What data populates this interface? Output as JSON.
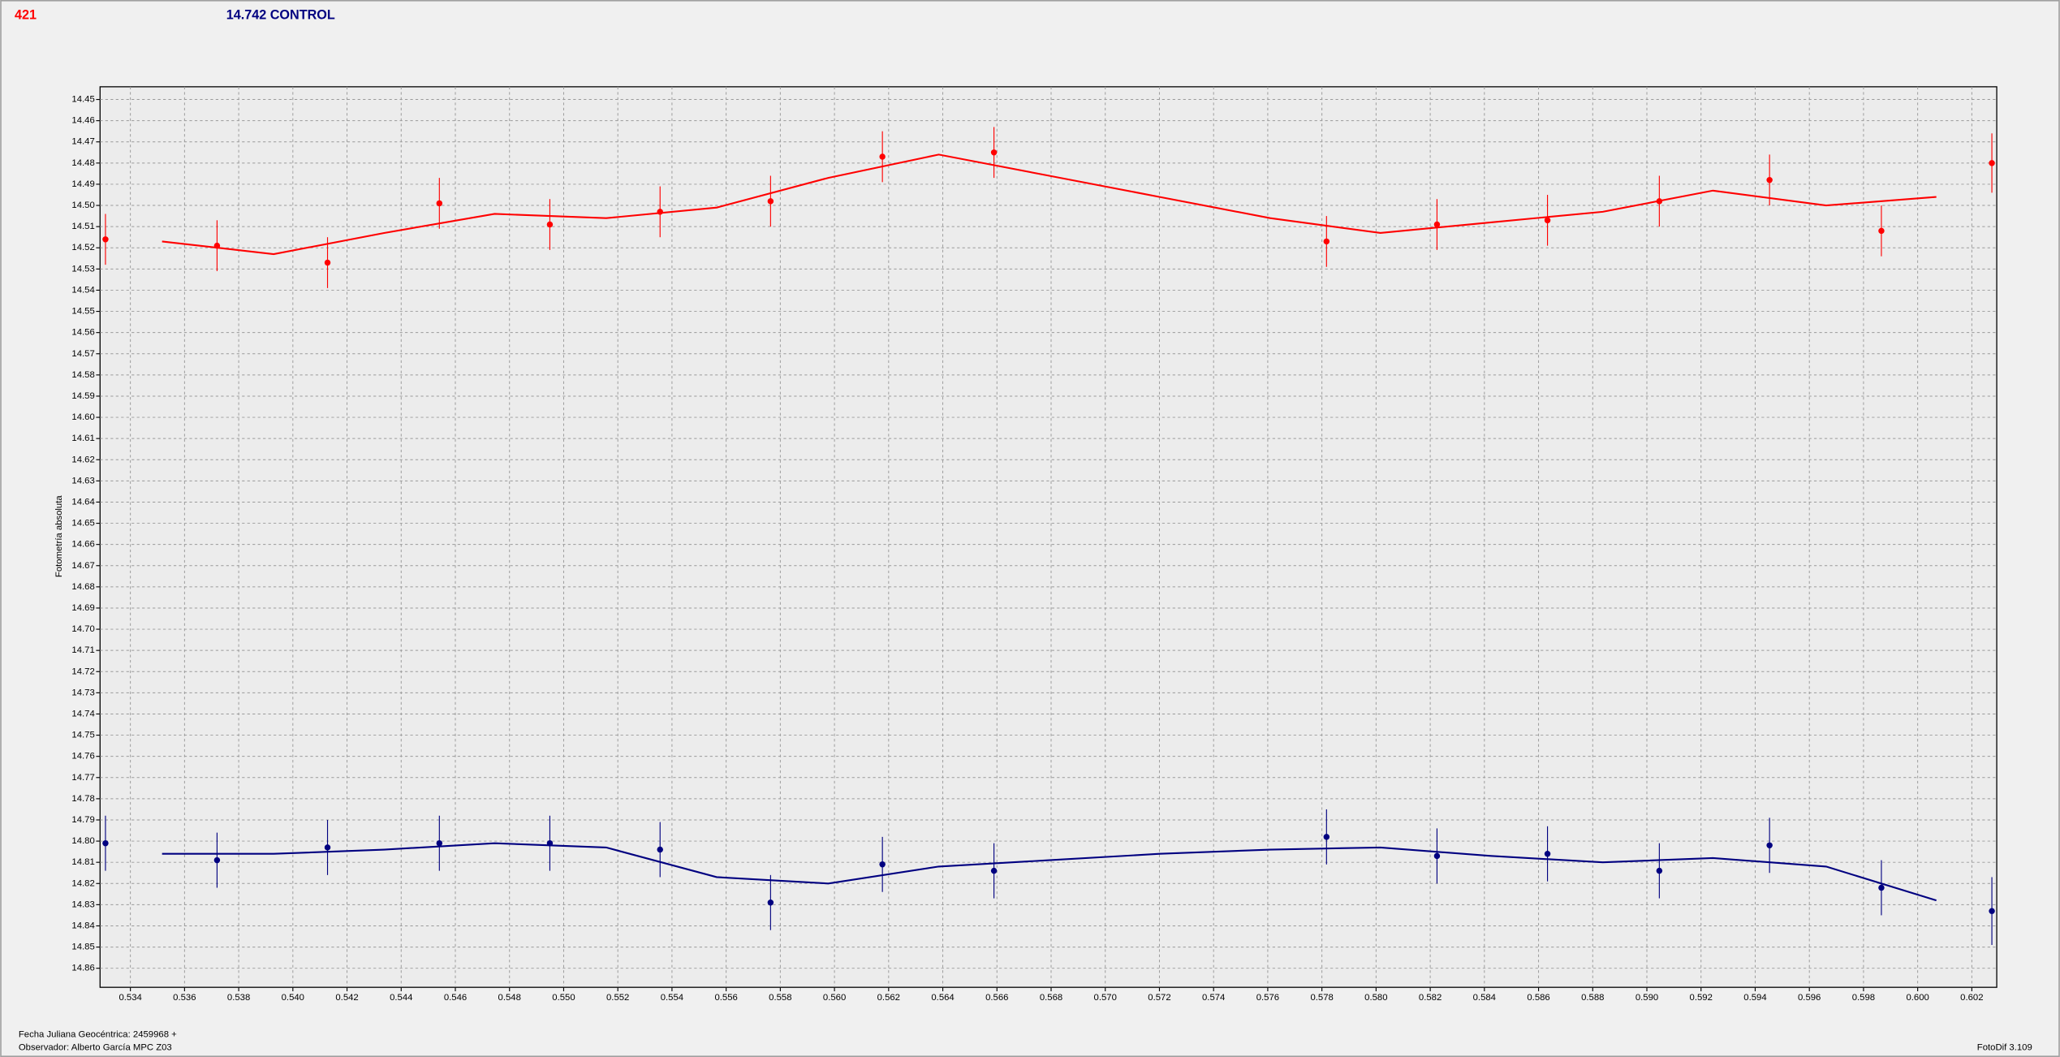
{
  "chart_data": {
    "type": "scatter",
    "object_id": "421",
    "title": "14.742 CONTROL",
    "y_label": "Fotometría absoluta",
    "footer_lines": [
      "Fecha Juliana Geocéntrica: 2459968 +",
      "Observador: Alberto García MPC Z03"
    ],
    "software": "FotoDif 3.109",
    "xlim": [
      0.53288,
      0.60292
    ],
    "xticks": [
      0.534,
      0.536,
      0.538,
      {
        "value": 0.54,
        "label": "0.540"
      },
      0.542,
      0.544,
      0.546,
      0.548,
      {
        "value": 0.55,
        "label": "0.550"
      },
      0.552,
      0.554,
      0.556,
      0.558,
      {
        "value": 0.56,
        "label": "0.560"
      },
      0.562,
      0.564,
      0.566,
      0.568,
      {
        "value": 0.57,
        "label": "0.570"
      },
      0.572,
      0.574,
      0.576,
      0.578,
      {
        "value": 0.58,
        "label": "0.580"
      },
      0.582,
      0.584,
      0.586,
      0.588,
      {
        "value": 0.59,
        "label": "0.590"
      },
      0.592,
      0.594,
      0.596,
      0.598,
      {
        "value": 0.6,
        "label": "0.600"
      },
      0.602
    ],
    "ylim": [
      14.869,
      14.444
    ],
    "yticks": [
      14.45,
      14.46,
      14.47,
      14.48,
      14.49,
      {
        "value": 14.5,
        "label": "14.50"
      },
      14.51,
      14.52,
      14.53,
      14.54,
      14.55,
      14.56,
      14.57,
      14.58,
      14.59,
      {
        "value": 14.6,
        "label": "14.60"
      },
      14.61,
      14.62,
      14.63,
      14.64,
      14.65,
      14.66,
      14.67,
      14.68,
      14.69,
      {
        "value": 14.7,
        "label": "14.70"
      },
      14.71,
      14.72,
      14.73,
      14.74,
      14.75,
      14.76,
      14.77,
      14.78,
      14.79,
      {
        "value": 14.8,
        "label": "14.80"
      },
      14.81,
      14.82,
      14.83,
      14.84,
      14.85,
      14.86
    ],
    "grid": true,
    "x": [
      0.53308,
      0.5372,
      0.54128,
      0.54541,
      0.54949,
      0.55356,
      0.55764,
      0.56177,
      0.56589,
      0.57817,
      0.58225,
      0.58633,
      0.59046,
      0.59453,
      0.59866,
      0.60274
    ],
    "fit_x": [
      0.53517,
      0.53929,
      0.54337,
      0.54745,
      0.55157,
      0.55565,
      0.55977,
      0.56385,
      0.56793,
      0.57201,
      0.57609,
      0.58016,
      0.58424,
      0.58837,
      0.59244,
      0.59662,
      0.60069
    ],
    "series": [
      {
        "color": "#ff0000",
        "values": [
          14.516,
          14.519,
          14.527,
          14.499,
          14.509,
          14.503,
          14.498,
          14.477,
          14.475,
          14.517,
          14.509,
          14.507,
          14.498,
          14.488,
          14.512,
          14.48
        ],
        "errors": [
          0.012,
          0.012,
          0.012,
          0.012,
          0.012,
          0.012,
          0.012,
          0.012,
          0.012,
          0.012,
          0.012,
          0.012,
          0.012,
          0.012,
          0.012,
          0.014
        ],
        "fit_values": [
          14.517,
          14.523,
          14.513,
          14.504,
          14.506,
          14.501,
          14.487,
          14.476,
          14.486,
          14.496,
          14.506,
          14.513,
          14.508,
          14.503,
          14.493,
          14.5,
          14.496
        ]
      },
      {
        "color": "#000080",
        "values": [
          14.801,
          14.809,
          14.803,
          14.801,
          14.801,
          14.804,
          14.829,
          14.811,
          14.814,
          14.798,
          14.807,
          14.806,
          14.814,
          14.802,
          14.822,
          14.833
        ],
        "errors": [
          0.013,
          0.013,
          0.013,
          0.013,
          0.013,
          0.013,
          0.013,
          0.013,
          0.013,
          0.013,
          0.013,
          0.013,
          0.013,
          0.013,
          0.013,
          0.016
        ],
        "fit_values": [
          14.806,
          14.806,
          14.804,
          14.801,
          14.803,
          14.817,
          14.82,
          14.812,
          14.809,
          14.806,
          14.804,
          14.803,
          14.807,
          14.81,
          14.808,
          14.812,
          14.828
        ]
      }
    ]
  }
}
